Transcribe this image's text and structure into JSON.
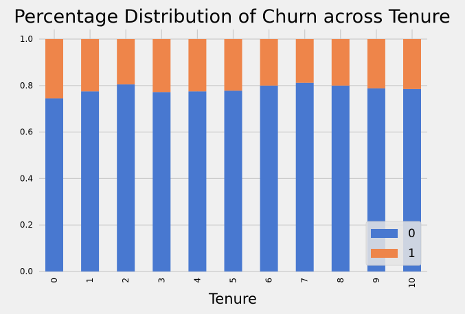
{
  "chart_data": {
    "type": "bar",
    "stacked": true,
    "title": "Percentage Distribution of Churn across Tenure",
    "xlabel": "Tenure",
    "ylabel": "",
    "categories": [
      "0",
      "1",
      "2",
      "3",
      "4",
      "5",
      "6",
      "7",
      "8",
      "9",
      "10"
    ],
    "ylim": [
      0,
      1.0
    ],
    "yticks": [
      "0.0",
      "0.2",
      "0.4",
      "0.6",
      "0.8",
      "1.0"
    ],
    "series": [
      {
        "name": "0",
        "color": "#4878d0",
        "values": [
          0.745,
          0.775,
          0.805,
          0.772,
          0.775,
          0.778,
          0.8,
          0.812,
          0.8,
          0.788,
          0.785
        ]
      },
      {
        "name": "1",
        "color": "#ee854a",
        "values": [
          0.255,
          0.225,
          0.195,
          0.228,
          0.225,
          0.222,
          0.2,
          0.188,
          0.2,
          0.212,
          0.215
        ]
      }
    ],
    "grid": true,
    "legend_position": "bottom-right",
    "background": "#f0f0f0",
    "grid_color": "#cbcbcb"
  }
}
